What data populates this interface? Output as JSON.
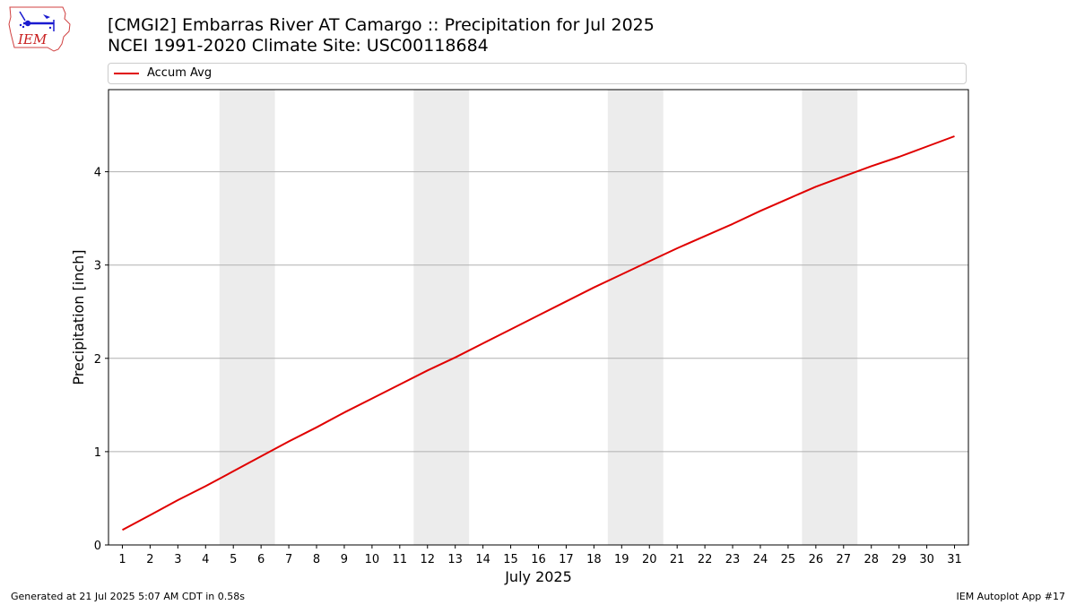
{
  "logo": {
    "text": "IEM",
    "icon": "iem-iowa-logo-icon"
  },
  "header": {
    "title_line1": "[CMGI2] Embarras River  AT Camargo :: Precipitation for Jul 2025",
    "title_line2": "NCEI 1991-2020 Climate Site: USC00118684"
  },
  "footer": {
    "generated": "Generated at 21 Jul 2025 5:07 AM CDT in 0.58s",
    "app": "IEM Autoplot App #17"
  },
  "colors": {
    "series": "#e00000",
    "weekend_band": "#ececec",
    "grid": "#b0b0b0"
  },
  "chart_data": {
    "type": "line",
    "title": "[CMGI2] Embarras River  AT Camargo :: Precipitation for Jul 2025",
    "subtitle": "NCEI 1991-2020 Climate Site: USC00118684",
    "xlabel": "July 2025",
    "ylabel": "Precipitation [inch]",
    "x": [
      1,
      2,
      3,
      4,
      5,
      6,
      7,
      8,
      9,
      10,
      11,
      12,
      13,
      14,
      15,
      16,
      17,
      18,
      19,
      20,
      21,
      22,
      23,
      24,
      25,
      26,
      27,
      28,
      29,
      30,
      31
    ],
    "x_ticks": [
      "1",
      "2",
      "3",
      "4",
      "5",
      "6",
      "7",
      "8",
      "9",
      "10",
      "11",
      "12",
      "13",
      "14",
      "15",
      "16",
      "17",
      "18",
      "19",
      "20",
      "21",
      "22",
      "23",
      "24",
      "25",
      "26",
      "27",
      "28",
      "29",
      "30",
      "31"
    ],
    "y_ticks": [
      "0",
      "1",
      "2",
      "3",
      "4"
    ],
    "ylim": [
      0,
      4.88
    ],
    "xlim": [
      0.5,
      31.5
    ],
    "grid": "horizontal",
    "legend_position": "top",
    "series": [
      {
        "name": "Accum Avg",
        "color": "#e00000",
        "values": [
          0.16,
          0.32,
          0.48,
          0.63,
          0.79,
          0.95,
          1.11,
          1.26,
          1.42,
          1.57,
          1.72,
          1.87,
          2.01,
          2.16,
          2.31,
          2.46,
          2.61,
          2.76,
          2.9,
          3.04,
          3.18,
          3.31,
          3.44,
          3.58,
          3.71,
          3.84,
          3.95,
          4.06,
          4.16,
          4.27,
          4.38
        ]
      }
    ],
    "shaded_bands": [
      [
        4.5,
        6.5
      ],
      [
        11.5,
        13.5
      ],
      [
        18.5,
        20.5
      ],
      [
        25.5,
        27.5
      ]
    ]
  }
}
